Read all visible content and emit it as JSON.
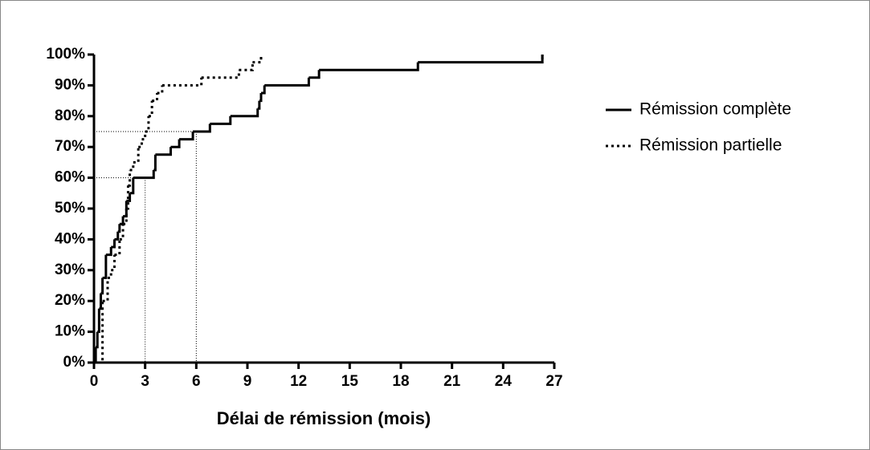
{
  "chart_data": {
    "type": "step",
    "x_label": "Délai de rémission (mois)",
    "xlim": [
      0,
      27
    ],
    "xticks": [
      0,
      3,
      6,
      9,
      12,
      15,
      18,
      21,
      24,
      27
    ],
    "ylim": [
      0,
      100
    ],
    "yticks": [
      {
        "value": 0,
        "label": "0%"
      },
      {
        "value": 10,
        "label": "10%"
      },
      {
        "value": 20,
        "label": "20%"
      },
      {
        "value": 30,
        "label": "30%"
      },
      {
        "value": 40,
        "label": "40%"
      },
      {
        "value": 50,
        "label": "50%"
      },
      {
        "value": 60,
        "label": "60%"
      },
      {
        "value": 70,
        "label": "70%"
      },
      {
        "value": 80,
        "label": "80%"
      },
      {
        "value": 90,
        "label": "90%"
      },
      {
        "value": 100,
        "label": "100%"
      }
    ],
    "legend": "right",
    "series": [
      {
        "name": "Rémission complète",
        "color": "#000000",
        "dash": "solid",
        "x": [
          0,
          0.1,
          0.2,
          0.3,
          0.4,
          0.5,
          0.7,
          1.0,
          1.2,
          1.4,
          1.5,
          1.7,
          1.9,
          2.1,
          2.3,
          3.5,
          3.6,
          4.5,
          5.0,
          5.8,
          6.8,
          8.0,
          9.6,
          9.7,
          9.8,
          10.0,
          12.6,
          13.2,
          19.0,
          26.3
        ],
        "values": [
          0,
          5,
          10,
          17.5,
          22.5,
          27.5,
          35,
          37.5,
          40,
          42.5,
          45,
          47.5,
          52.5,
          55,
          60,
          62.5,
          67.5,
          70,
          72.5,
          75,
          77.5,
          80,
          82.5,
          85,
          87.5,
          90,
          92.5,
          95,
          97.5,
          100
        ]
      },
      {
        "name": "Rémission partielle",
        "color": "#000000",
        "dash": "dotted",
        "x": [
          0.3,
          0.5,
          0.8,
          1.0,
          1.2,
          1.5,
          1.7,
          1.9,
          2.0,
          2.1,
          2.3,
          2.6,
          2.8,
          3.0,
          3.2,
          3.4,
          3.7,
          4.0,
          6.3,
          8.5,
          9.3,
          9.8
        ],
        "values": [
          0,
          20,
          27.5,
          30,
          35,
          40,
          45,
          50,
          57.5,
          62.5,
          65,
          70,
          72.5,
          75,
          80,
          85,
          87.5,
          90,
          92.5,
          95,
          97.5,
          100
        ]
      }
    ],
    "reference_lines": [
      {
        "x": 3,
        "y": 60
      },
      {
        "x": 6,
        "y": 75
      }
    ]
  }
}
